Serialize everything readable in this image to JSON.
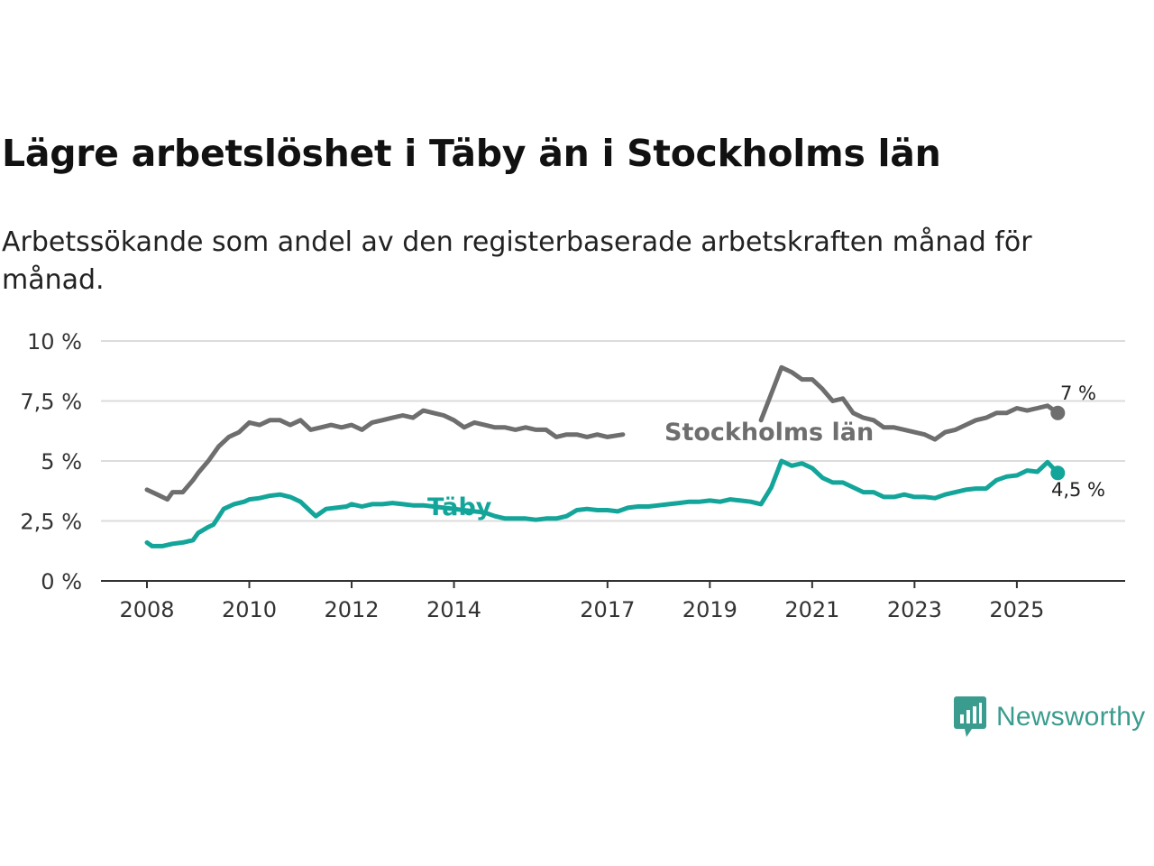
{
  "title": "Lägre arbetslöshet i Täby än i Stockholms län",
  "subtitle": "Arbetssökande som andel av den registerbaserade arbetskraften månad för månad.",
  "brand": {
    "name": "Newsworthy",
    "icon": "bar-chart-speech-bubble-icon",
    "color": "#3a9c8f"
  },
  "chart_data": {
    "type": "line",
    "title": "Lägre arbetslöshet i Täby än i Stockholms län",
    "xlabel": "",
    "ylabel": "",
    "xlim": [
      2008.0,
      2026.2
    ],
    "ylim": [
      0,
      10
    ],
    "grid": true,
    "y_ticks": [
      0,
      2.5,
      5,
      7.5,
      10
    ],
    "y_tick_labels": [
      "0 %",
      "2,5 %",
      "5 %",
      "7,5 %",
      "10 %"
    ],
    "x_ticks": [
      2008,
      2010,
      2012,
      2014,
      2017,
      2019,
      2021,
      2023,
      2025
    ],
    "x_tick_labels": [
      "2008",
      "2010",
      "2012",
      "2014",
      "2017",
      "2019",
      "2021",
      "2023",
      "2025"
    ],
    "series": [
      {
        "name": "Stockholms län",
        "color": "#6e6e6e",
        "label": "Stockholms län",
        "end_label": "7 %",
        "x": [
          2008.0,
          2008.2,
          2008.4,
          2008.5,
          2008.7,
          2008.9,
          2009.0,
          2009.2,
          2009.4,
          2009.6,
          2009.8,
          2010.0,
          2010.2,
          2010.4,
          2010.6,
          2010.8,
          2011.0,
          2011.2,
          2011.4,
          2011.6,
          2011.8,
          2012.0,
          2012.2,
          2012.4,
          2012.6,
          2012.8,
          2013.0,
          2013.2,
          2013.4,
          2013.6,
          2013.8,
          2014.0,
          2014.2,
          2014.4,
          2014.6,
          2014.8,
          2015.0,
          2015.2,
          2015.4,
          2015.6,
          2015.8,
          2016.0,
          2016.2,
          2016.4,
          2016.6,
          2016.8,
          2017.0,
          2017.3
        ],
        "y": [
          3.8,
          3.6,
          3.4,
          3.7,
          3.7,
          4.2,
          4.5,
          5.0,
          5.6,
          6.0,
          6.2,
          6.6,
          6.5,
          6.7,
          6.7,
          6.5,
          6.7,
          6.3,
          6.4,
          6.5,
          6.4,
          6.5,
          6.3,
          6.6,
          6.7,
          6.8,
          6.9,
          6.8,
          7.1,
          7.0,
          6.9,
          6.7,
          6.4,
          6.6,
          6.5,
          6.4,
          6.4,
          6.3,
          6.4,
          6.3,
          6.3,
          6.0,
          6.1,
          6.1,
          6.0,
          6.1,
          6.0,
          6.1
        ],
        "x2": [
          2020.0,
          2020.2,
          2020.4,
          2020.6,
          2020.8,
          2021.0,
          2021.2,
          2021.4,
          2021.6,
          2021.8,
          2022.0,
          2022.2,
          2022.4,
          2022.6,
          2022.8,
          2023.0,
          2023.2,
          2023.4,
          2023.6,
          2023.8,
          2024.0,
          2024.2,
          2024.4,
          2024.6,
          2024.8,
          2025.0,
          2025.2,
          2025.4,
          2025.6,
          2025.8
        ],
        "y2": [
          6.7,
          7.8,
          8.9,
          8.7,
          8.4,
          8.4,
          8.0,
          7.5,
          7.6,
          7.0,
          6.8,
          6.7,
          6.4,
          6.4,
          6.3,
          6.2,
          6.1,
          5.9,
          6.2,
          6.3,
          6.5,
          6.7,
          6.8,
          7.0,
          7.0,
          7.2,
          7.1,
          7.2,
          7.3,
          7.0
        ]
      },
      {
        "name": "Täby",
        "color": "#13a59a",
        "label": "Täby",
        "end_label": "4,5 %",
        "x": [
          2008.0,
          2008.1,
          2008.3,
          2008.5,
          2008.7,
          2008.9,
          2009.0,
          2009.2,
          2009.3,
          2009.5,
          2009.7,
          2009.9,
          2010.0,
          2010.2,
          2010.4,
          2010.6,
          2010.8,
          2011.0,
          2011.2,
          2011.3,
          2011.5,
          2011.7,
          2011.9,
          2012.0,
          2012.2,
          2012.4,
          2012.6,
          2012.8,
          2013.0,
          2013.2,
          2013.4,
          2013.6,
          2014.6,
          2014.8,
          2015.0,
          2015.2,
          2015.4,
          2015.6,
          2015.8,
          2016.0,
          2016.2,
          2016.4,
          2016.6,
          2016.8,
          2017.0,
          2017.2,
          2017.4,
          2017.6,
          2017.8,
          2018.0,
          2018.2,
          2018.4,
          2018.6,
          2018.8,
          2019.0,
          2019.2,
          2019.4,
          2019.6,
          2019.8,
          2020.0,
          2020.2,
          2020.4,
          2020.6,
          2020.8,
          2021.0,
          2021.2,
          2021.4,
          2021.6,
          2021.8,
          2022.0,
          2022.2,
          2022.4,
          2022.6,
          2022.8,
          2023.0,
          2023.2,
          2023.4,
          2023.6,
          2023.8,
          2024.0,
          2024.2,
          2024.4,
          2024.6,
          2024.8,
          2025.0,
          2025.2,
          2025.4,
          2025.6,
          2025.8
        ],
        "y": [
          1.6,
          1.45,
          1.45,
          1.55,
          1.6,
          1.7,
          2.0,
          2.25,
          2.35,
          3.0,
          3.2,
          3.3,
          3.4,
          3.45,
          3.55,
          3.6,
          3.5,
          3.3,
          2.9,
          2.7,
          3.0,
          3.05,
          3.1,
          3.2,
          3.1,
          3.2,
          3.2,
          3.25,
          3.2,
          3.15,
          3.15,
          3.1,
          2.85,
          2.7,
          2.6,
          2.6,
          2.6,
          2.55,
          2.6,
          2.6,
          2.7,
          2.95,
          3.0,
          2.95,
          2.95,
          2.9,
          3.05,
          3.1,
          3.1,
          3.15,
          3.2,
          3.25,
          3.3,
          3.3,
          3.35,
          3.3,
          3.4,
          3.35,
          3.3,
          3.2,
          3.9,
          5.0,
          4.8,
          4.9,
          4.7,
          4.3,
          4.1,
          4.1,
          3.9,
          3.7,
          3.7,
          3.5,
          3.5,
          3.6,
          3.5,
          3.5,
          3.45,
          3.6,
          3.7,
          3.8,
          3.85,
          3.85,
          4.2,
          4.35,
          4.4,
          4.6,
          4.55,
          4.95,
          4.5
        ]
      }
    ]
  }
}
